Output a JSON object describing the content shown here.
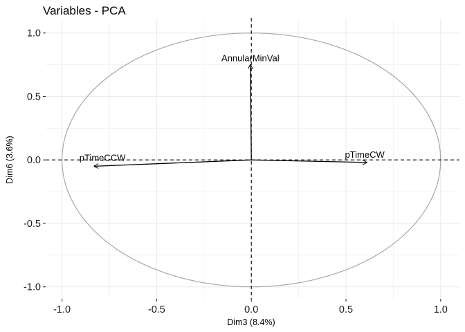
{
  "chart_data": {
    "type": "scatter",
    "subtype": "pca-variable-correlation-circle",
    "title": "Variables - PCA",
    "xlabel": "Dim3 (8.4%)",
    "ylabel": "Dim6 (3.6%)",
    "xlim": [
      -1.1,
      1.1
    ],
    "ylim": [
      -1.1,
      1.1
    ],
    "x_ticks": [
      -1.0,
      -0.5,
      0.0,
      0.5,
      1.0
    ],
    "x_tick_labels": [
      "-1.0",
      "-0.5",
      "0.0",
      "0.5",
      "1.0"
    ],
    "y_ticks": [
      -1.0,
      -0.5,
      0.0,
      0.5,
      1.0
    ],
    "y_tick_labels": [
      "-1.0",
      "-0.5",
      "0.0",
      "0.5",
      "1.0"
    ],
    "grid": true,
    "correlation_circle": true,
    "zero_reference_lines": "dashed",
    "variables": [
      {
        "name": "AnnularMinVal",
        "x": -0.005,
        "y": 0.75
      },
      {
        "name": "pTimeCCW",
        "x": -0.83,
        "y": -0.05
      },
      {
        "name": "pTimeCW",
        "x": 0.61,
        "y": -0.02
      }
    ],
    "colors": {
      "background": "#ffffff",
      "grid": "#ebebeb",
      "circle": "#a6a6a6",
      "arrow": "#000000",
      "reference_line": "#000000"
    }
  }
}
